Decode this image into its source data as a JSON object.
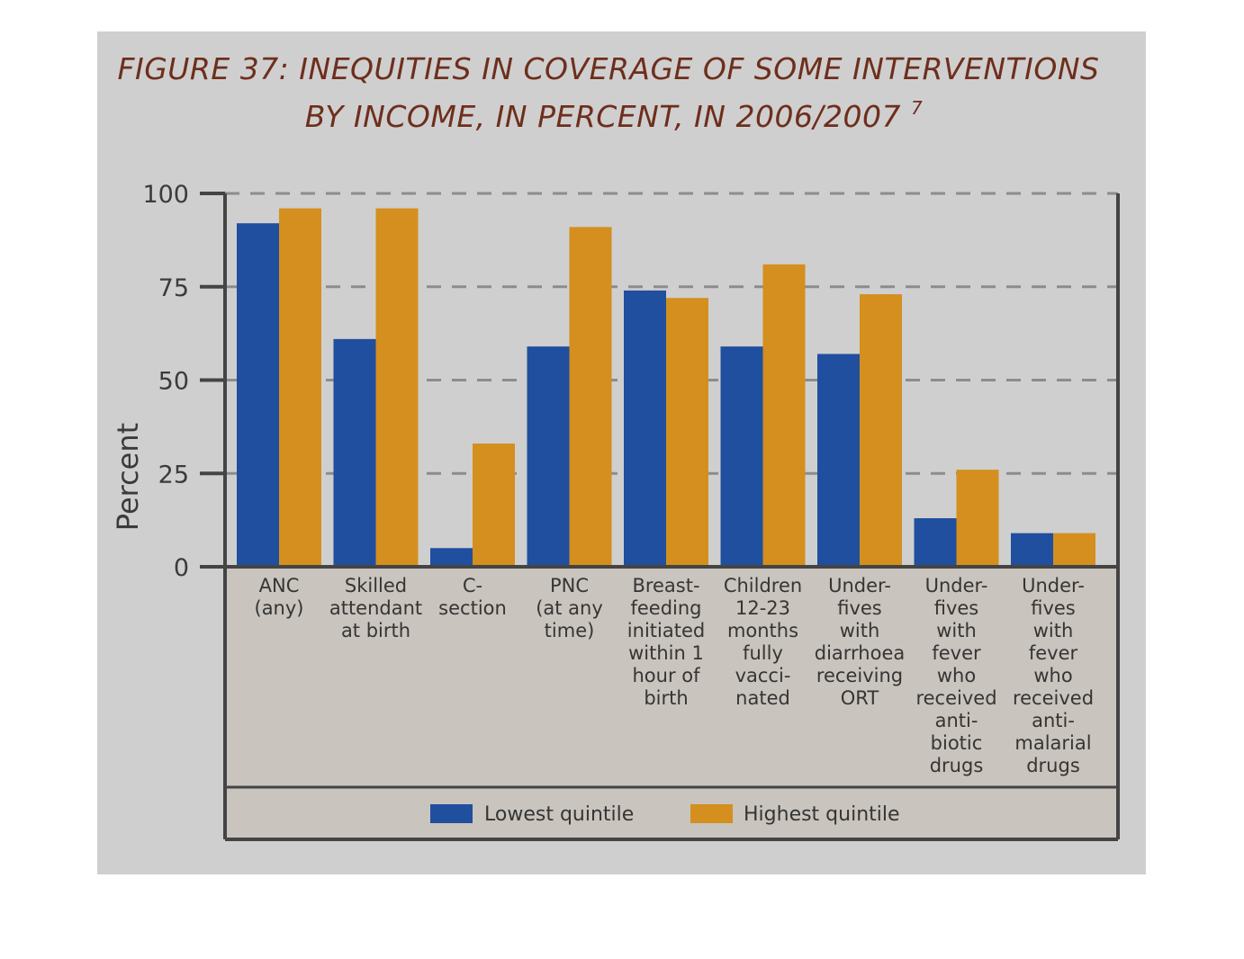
{
  "title": {
    "line1": "FIGURE 37: INEQUITIES IN COVERAGE OF SOME INTERVENTIONS",
    "line2": "BY INCOME, IN PERCENT, IN 2006/2007",
    "superscript": "7"
  },
  "colors": {
    "lowest": "#1f4f9e",
    "highest": "#d48f1f",
    "grid": "#8c8c8c",
    "axis": "#444444",
    "background": "#cfcfcf",
    "label_area": "#c9c4bd"
  },
  "chart_data": {
    "type": "bar",
    "ylabel": "Percent",
    "xlabel": "",
    "ylim": [
      0,
      100
    ],
    "yticks": [
      0,
      25,
      50,
      75,
      100
    ],
    "grid": true,
    "legend_position": "bottom",
    "categories": [
      [
        "ANC",
        "(any)"
      ],
      [
        "Skilled",
        "attendant",
        "at birth"
      ],
      [
        "C-",
        "section"
      ],
      [
        "PNC",
        "(at any",
        "time)"
      ],
      [
        "Breast-",
        "feeding",
        "initiated",
        "within 1",
        "hour of",
        "birth"
      ],
      [
        "Children",
        "12-23",
        "months",
        "fully",
        "vacci-",
        "nated"
      ],
      [
        "Under-",
        "fives",
        "with",
        "diarrhoea",
        "receiving",
        "ORT"
      ],
      [
        "Under-",
        "fives",
        "with",
        "fever",
        "who",
        "received",
        "anti-",
        "biotic",
        "drugs"
      ],
      [
        "Under-",
        "fives",
        "with",
        "fever",
        "who",
        "received",
        "anti-",
        "malarial",
        "drugs"
      ]
    ],
    "series": [
      {
        "name": "Lowest quintile",
        "values": [
          92,
          61,
          5,
          59,
          74,
          59,
          57,
          13,
          9
        ]
      },
      {
        "name": "Highest quintile",
        "values": [
          96,
          96,
          33,
          91,
          72,
          81,
          73,
          26,
          9
        ]
      }
    ]
  }
}
